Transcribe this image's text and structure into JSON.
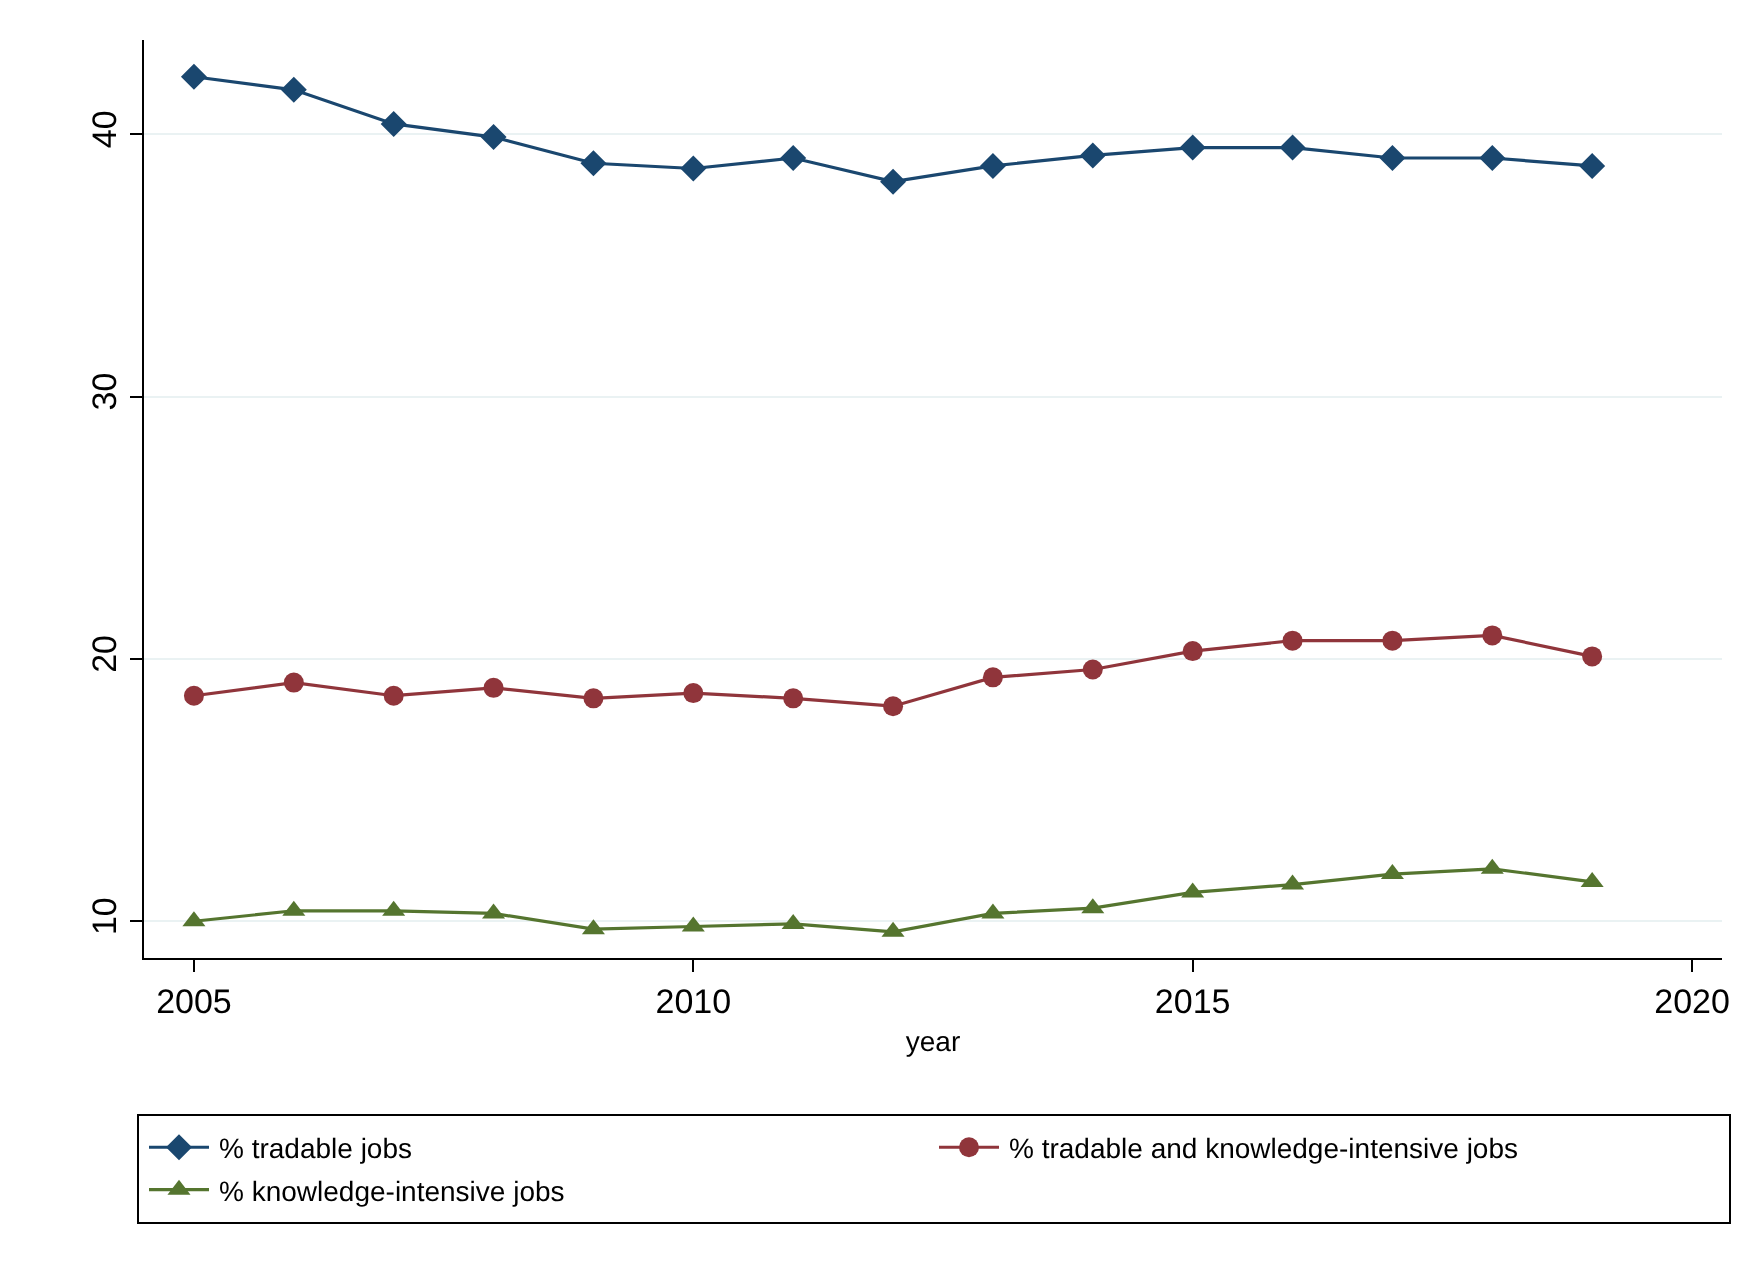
{
  "chart_data": {
    "type": "line",
    "xlabel": "year",
    "x": [
      2005,
      2006,
      2007,
      2008,
      2009,
      2010,
      2011,
      2012,
      2013,
      2014,
      2015,
      2016,
      2017,
      2018,
      2019
    ],
    "series": [
      {
        "name": "% tradable jobs",
        "color": "#1a476f",
        "marker": "diamond",
        "values": [
          42.2,
          41.7,
          40.4,
          39.9,
          38.9,
          38.7,
          39.1,
          38.2,
          38.8,
          39.2,
          39.5,
          39.5,
          39.1,
          39.1,
          38.8
        ]
      },
      {
        "name": "% tradable and knowledge-intensive jobs",
        "color": "#90353b",
        "marker": "circle",
        "values": [
          18.6,
          19.1,
          18.6,
          18.9,
          18.5,
          18.7,
          18.5,
          18.2,
          19.3,
          19.6,
          20.3,
          20.7,
          20.7,
          20.9,
          20.1
        ]
      },
      {
        "name": "% knowledge-intensive jobs",
        "color": "#55752f",
        "marker": "triangle",
        "values": [
          10.0,
          10.4,
          10.4,
          10.3,
          9.7,
          9.8,
          9.9,
          9.6,
          10.3,
          10.5,
          11.1,
          11.4,
          11.8,
          12.0,
          11.5
        ]
      }
    ],
    "xlim": [
      2004.5,
      2020.3
    ],
    "xticks": [
      2005,
      2010,
      2015,
      2020
    ],
    "ylim": [
      8.6,
      43.6
    ],
    "yticks": [
      10,
      20,
      30,
      40
    ],
    "grid": "y",
    "legend": "bottom",
    "line_style": "solid"
  }
}
